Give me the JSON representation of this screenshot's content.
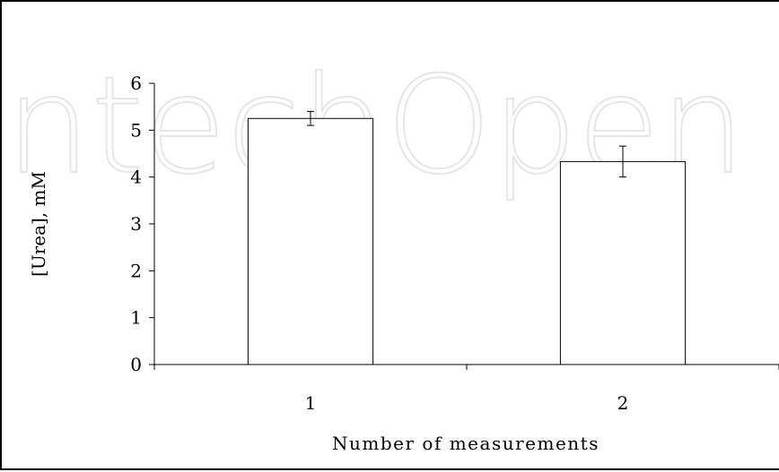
{
  "watermark_text": "IntechOpen",
  "chart_data": {
    "type": "bar",
    "categories": [
      "1",
      "2"
    ],
    "series": [
      {
        "values": [
          5.25,
          4.33
        ],
        "error": [
          0.15,
          0.33
        ]
      }
    ],
    "xlabel": "Number of measurements",
    "ylabel": "[Urea], mM",
    "ylim": [
      0,
      6
    ],
    "yticks": [
      0,
      1,
      2,
      3,
      4,
      5,
      6
    ],
    "grid": false,
    "legend": "none",
    "bar_fill": "#ffffff",
    "bar_stroke": "#000000"
  }
}
